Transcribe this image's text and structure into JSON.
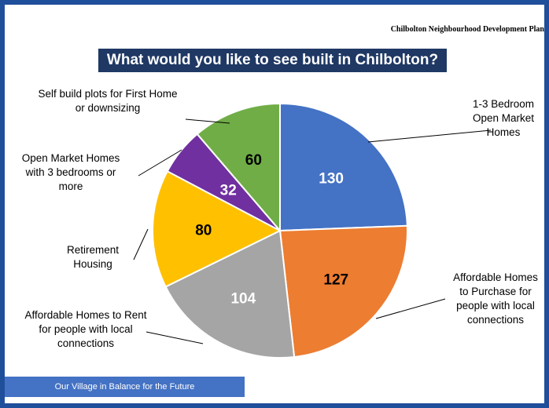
{
  "header": {
    "document_title": "Chilbolton Neighbourhood Development Plan"
  },
  "chart_data": {
    "type": "pie",
    "title": "What would you like to see built in Chilbolton?",
    "slices": [
      {
        "label": [
          "1-3 Bedroom",
          "Open Market",
          "Homes"
        ],
        "value": 130,
        "color": "#4472c4"
      },
      {
        "label": [
          "Affordable Homes",
          "to Purchase for",
          "people with local",
          "connections"
        ],
        "value": 127,
        "color": "#ed7d31"
      },
      {
        "label": [
          "Affordable Homes to Rent",
          "for people with local",
          "connections"
        ],
        "value": 104,
        "color": "#a5a5a5"
      },
      {
        "label": [
          "Retirement",
          "Housing"
        ],
        "value": 80,
        "color": "#ffc000"
      },
      {
        "label": [
          "Open Market Homes",
          "with 3 bedrooms or",
          "more"
        ],
        "value": 32,
        "color": "#7030a0"
      },
      {
        "label": [
          "Self build plots for First Home",
          "or downsizing"
        ],
        "value": 60,
        "color": "#70ad47"
      }
    ],
    "legend": "none"
  },
  "footer": {
    "tagline": "Our Village in Balance for the Future"
  }
}
